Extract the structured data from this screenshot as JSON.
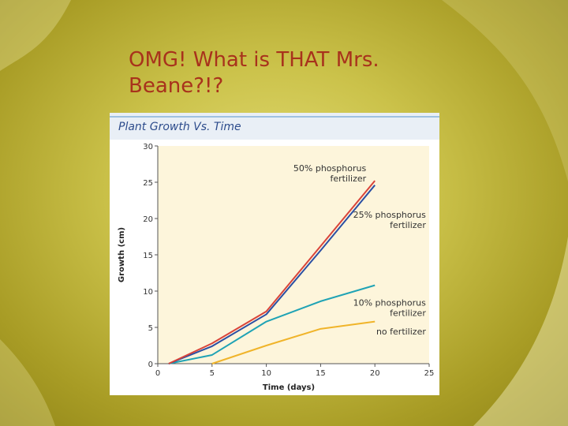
{
  "slide": {
    "title_line1": "OMG! What is THAT Mrs.",
    "title_line2": "Beane?!?"
  },
  "colors": {
    "title_text": "#a8321c",
    "chart_title": "#2d4c8c",
    "plot_background": "#fdf5db",
    "header_band": "#e9eff6",
    "series_50": "#d9443a",
    "series_25": "#2b4fa3",
    "series_10": "#1fa3b5",
    "series_none": "#f0b42a"
  },
  "chart_data": {
    "type": "line",
    "title": "Plant Growth Vs. Time",
    "xlabel": "Time (days)",
    "ylabel": "Growth (cm)",
    "xlim": [
      0,
      25
    ],
    "ylim": [
      0,
      30
    ],
    "xticks": [
      "0",
      "5",
      "10",
      "15",
      "20",
      "25"
    ],
    "yticks": [
      "0",
      "5",
      "10",
      "15",
      "20",
      "25",
      "30"
    ],
    "grid": false,
    "series": [
      {
        "name": "50% phosphorus fertilizer",
        "label_lines": [
          "50% phosphorus",
          "fertilizer"
        ],
        "color": "#d9443a",
        "x": [
          1,
          5,
          10,
          15,
          20
        ],
        "y": [
          0,
          2.8,
          7.2,
          16.2,
          25.2
        ]
      },
      {
        "name": "25% phosphorus fertilizer",
        "label_lines": [
          "25% phosphorus",
          "fertilizer"
        ],
        "color": "#2b4fa3",
        "x": [
          1,
          5,
          10,
          15,
          20
        ],
        "y": [
          0,
          2.4,
          6.8,
          15.6,
          24.6
        ]
      },
      {
        "name": "10% phosphorus fertilizer",
        "label_lines": [
          "10% phosphorus",
          "fertilizer"
        ],
        "color": "#1fa3b5",
        "x": [
          1,
          5,
          10,
          15,
          20
        ],
        "y": [
          0,
          1.2,
          5.8,
          8.6,
          10.8
        ]
      },
      {
        "name": "no fertilizer",
        "label_lines": [
          "no fertilizer"
        ],
        "color": "#f0b42a",
        "x": [
          5,
          10,
          15,
          20
        ],
        "y": [
          0,
          2.5,
          4.8,
          5.8
        ]
      }
    ]
  }
}
